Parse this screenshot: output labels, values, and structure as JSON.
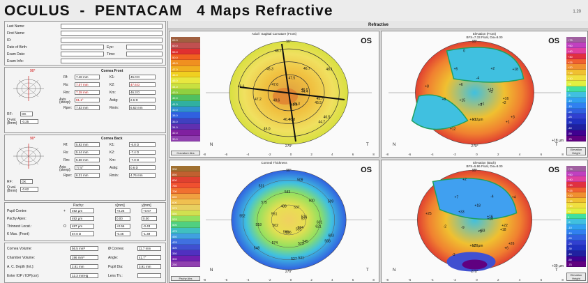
{
  "header": {
    "title": "OCULUS  -  PENTACAM   4 Maps Refractive",
    "version": "1.20"
  },
  "patient": {
    "labels": [
      "Last Name:",
      "First Name:",
      "ID:",
      "Date of Birth:",
      "Exam Date:",
      "Exam Info:"
    ],
    "eye_label": "Eye:",
    "time_label": "Time:"
  },
  "cornea_front": {
    "title": "Cornea Front",
    "axis_top": "90°",
    "rows": [
      {
        "l1": "Rf:",
        "v1": "7.48 mm",
        "l2": "K1:",
        "v2": "45.0 D"
      },
      {
        "l1": "Rs:",
        "v1": "7.07 mm",
        "l2": "K2:",
        "v2": "47.6 D"
      },
      {
        "l1": "Rm:",
        "v1": "7.28 mm",
        "l2": "Km:",
        "v2": "46.3 D"
      },
      {
        "l1": "Axis (steep):",
        "v1": "91.1°",
        "l2": "Astig:",
        "v2": "2.6 D"
      },
      {
        "l1": "Rper:",
        "v1": "7.53 mm",
        "l2": "Rmin:",
        "v2": "6.62 mm"
      }
    ],
    "qval_label": "Q-val. (8mm)",
    "qval": "-0.25",
    "rf_label": "RF:",
    "rf": "OK"
  },
  "cornea_back": {
    "title": "Cornea Back",
    "axis_top": "90°",
    "rows": [
      {
        "l1": "Rf:",
        "v1": "5.92 mm",
        "l2": "K1:",
        "v2": "-6.8 D"
      },
      {
        "l1": "Rs:",
        "v1": "5.44 mm",
        "l2": "K2:",
        "v2": "-7.4 D"
      },
      {
        "l1": "Rm:",
        "v1": "5.68 mm",
        "l2": "Km:",
        "v2": "-7.0 D"
      },
      {
        "l1": "Axis (steep):",
        "v1": "77.5°",
        "l2": "Astig:",
        "v2": "0.6 D"
      },
      {
        "l1": "Rper:",
        "v1": "6.31 mm",
        "l2": "Rmin:",
        "v2": "4.76 mm"
      }
    ],
    "qval_label": "Q-val. (8mm)",
    "qval": "-0.62",
    "rf_label": "RF:",
    "rf": "OK"
  },
  "pachy": {
    "col_headers": [
      "Pachy:",
      "x[mm]",
      "y[mm]"
    ],
    "rows": [
      {
        "label": "Pupil Center:",
        "sym": "+",
        "v": "492 µm",
        "x": "+0.26",
        "y": "+0.07"
      },
      {
        "label": "Pachy Apex:",
        "sym": "",
        "v": "492 µm",
        "x": "0.00",
        "y": "0.00"
      },
      {
        "label": "Thinnest Locat.:",
        "sym": "O",
        "v": "487 µm",
        "x": "+0.56",
        "y": "-0.43"
      },
      {
        "label": "K Max. (Front)",
        "sym": "",
        "v": "57.0 D",
        "x": "-0.46",
        "y": "-1.49"
      }
    ]
  },
  "volumes": {
    "rows": [
      {
        "l1": "Cornea Volume:",
        "v1": "56.5 mm³",
        "l2": "Ø Cornea:",
        "v2": "11.7 mm"
      },
      {
        "l1": "Chamber Volume:",
        "v1": "196 mm³",
        "l2": "Angle:",
        "v2": "41.7°"
      },
      {
        "l1": "A. C. Depth (Int.):",
        "v1": "2.81 mm",
        "l2": "Pupil Dia:",
        "v2": "3.91 mm"
      },
      {
        "l1": "Enter IOP / IOP(cor):",
        "v1": "12.3 mmHg",
        "l2": "Lens Th.:",
        "v2": ""
      }
    ]
  },
  "refractive_label": "Refractive",
  "maps": {
    "axial": {
      "title": "Axial / Sagittal Curvature (Front)",
      "eye": "OS",
      "scale": [
        "65.0",
        "60.0",
        "55.0",
        "50.0",
        "48.0",
        "47.0",
        "46.0",
        "45.0",
        "44.0",
        "43.0",
        "42.0",
        "41.0",
        "40.0",
        "38.0",
        "36.0",
        "34.0",
        "32.0",
        "30.0"
      ],
      "scale_colors": [
        "#a06040",
        "#c05050",
        "#e03030",
        "#f06020",
        "#f09020",
        "#f0b020",
        "#f0d020",
        "#e8e840",
        "#c8e040",
        "#90d040",
        "#50c060",
        "#30b0a0",
        "#3090d0",
        "#3060e0",
        "#4040c0",
        "#6030b0",
        "#8020a0",
        "#9040b0"
      ],
      "scale_label": "Curvature",
      "scale_unit": "Abs",
      "values": [
        "44.4",
        "45.5",
        "44.7",
        "45.4",
        "46.4",
        "45.0",
        "48.6",
        "47.2",
        "46.6",
        "47.0",
        "45.3",
        "46.7",
        "47.5",
        "46.7",
        "48.1",
        "46.0",
        "45.7",
        "46.5",
        "46.3",
        "46.8"
      ],
      "bottom_ticks": [
        "-8",
        "-6",
        "-4",
        "-2",
        "0",
        "2",
        "4",
        "6",
        "8"
      ],
      "nt": [
        "N",
        "T"
      ],
      "angles": [
        "90°",
        "270°",
        "0°",
        "180°"
      ]
    },
    "elev_front": {
      "title": "Elevation (Front)",
      "subtitle": "BFS=7.33 Float, Dia=8.00",
      "eye": "OS",
      "scale": [
        "+75",
        "+50",
        "+40",
        "+30",
        "+25",
        "+20",
        "+15",
        "+10",
        "+5",
        "0",
        "-5",
        "-10",
        "-15",
        "-20",
        "-25",
        "-30",
        "-40",
        "-50",
        "-75"
      ],
      "scale_colors": [
        "#a060a0",
        "#c040c0",
        "#e040a0",
        "#e03040",
        "#f06030",
        "#f09030",
        "#f0c030",
        "#f0e040",
        "#e0f040",
        "#40e0a0",
        "#40c0e0",
        "#30a0f0",
        "#3080f0",
        "#3060e0",
        "#3040d0",
        "#2030c0",
        "#2020a0",
        "#400090",
        "#600080"
      ],
      "scale_label": "Elevation",
      "scale_unit": "Height",
      "values": [
        "+3",
        "+2",
        "+1",
        "+9",
        "+10",
        "+12",
        "+15",
        "+8",
        "+8",
        "+6",
        "+5",
        "0",
        "-4",
        "+2",
        "+18",
        "+13",
        "+16",
        "+3",
        "+1",
        "+12µm"
      ],
      "bottom_ticks": [
        "-8",
        "-6",
        "-4",
        "-2",
        "0",
        "2",
        "4",
        "6",
        "8"
      ],
      "nt": [
        "N",
        "T"
      ],
      "angles": [
        "90°",
        "270°"
      ],
      "side_label": "+18 µm"
    },
    "thickness": {
      "title": "Corneal Thickness",
      "eye": "OS",
      "scale": [
        "900",
        "850",
        "800",
        "750",
        "700",
        "650",
        "600",
        "575",
        "550",
        "525",
        "500",
        "475",
        "450",
        "425",
        "400",
        "350",
        "300",
        "250"
      ],
      "scale_colors": [
        "#a07030",
        "#c06030",
        "#e04030",
        "#f05030",
        "#f07030",
        "#f0a040",
        "#f0c050",
        "#e8d060",
        "#d0e050",
        "#90e060",
        "#50d080",
        "#40c0c0",
        "#40a0e0",
        "#4070e0",
        "#4050d0",
        "#5030c0",
        "#7020b0",
        "#9040b0"
      ],
      "scale_label": "Pachy",
      "scale_unit": "Abs",
      "values": [
        "577",
        "621",
        "568",
        "531",
        "529",
        "527",
        "566",
        "574",
        "548",
        "502",
        "518",
        "552",
        "551",
        "575",
        "531",
        "488",
        "543",
        "509",
        "537",
        "500",
        "509",
        "526",
        "601",
        "603",
        "564",
        "545",
        "531",
        "536"
      ],
      "bottom_ticks": [
        "-8",
        "-6",
        "-4",
        "-2",
        "0",
        "2",
        "4",
        "6",
        "8"
      ],
      "nt": [
        "N",
        "T"
      ],
      "angles": [
        "90°",
        "270°"
      ]
    },
    "elev_back": {
      "title": "Elevation (Back)",
      "subtitle": "BFS=5.96 Float, Dia=8.00",
      "eye": "OS",
      "scale": [
        "+75",
        "+50",
        "+40",
        "+30",
        "+25",
        "+20",
        "+15",
        "+10",
        "+5",
        "0",
        "-5",
        "-10",
        "-15",
        "-20",
        "-25",
        "-30",
        "-40",
        "-50",
        "-75"
      ],
      "scale_colors": [
        "#a060a0",
        "#c040c0",
        "#e040a0",
        "#e03040",
        "#f06030",
        "#f09030",
        "#f0c030",
        "#f0e040",
        "#e0f040",
        "#40e0a0",
        "#40c0e0",
        "#30a0f0",
        "#3080f0",
        "#3060e0",
        "#3040d0",
        "#2030c0",
        "#2020a0",
        "#400090",
        "#600080"
      ],
      "scale_label": "Elevation",
      "scale_unit": "Height",
      "values": [
        "+10",
        "+18",
        "+6",
        "+3",
        "+12",
        "-3",
        "-9",
        "-2",
        "+25",
        "+33",
        "+7",
        "+2",
        "+18",
        "-4",
        "+4",
        "+16",
        "+22",
        "+26",
        "+33",
        "+39µm"
      ],
      "bottom_ticks": [
        "-8",
        "-6",
        "-4",
        "-2",
        "0",
        "2",
        "4",
        "6",
        "8"
      ],
      "nt": [
        "N",
        "T"
      ],
      "angles": [
        "90°",
        "270°"
      ],
      "side_label": "+39 µm"
    }
  }
}
